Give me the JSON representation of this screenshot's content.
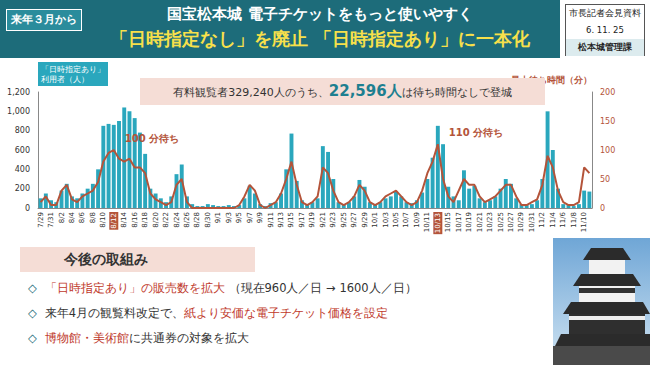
{
  "header": {
    "tag": "来年３月から",
    "title": "国宝松本城 電子チケットをもっと使いやすく",
    "subtitle": "「日時指定なし」を廃止 「日時指定あり」に一本化",
    "info": [
      "市長記者会見資料",
      "6. 11. 25",
      "松本城管理課"
    ]
  },
  "chart_data": {
    "type": "bar",
    "y_label": "「日時指定あり」\n利用者（人）",
    "y2_label": "最大待ち時間（分）",
    "categories": [
      "7/29",
      null,
      "7/31",
      null,
      "8/2",
      null,
      "8/4",
      null,
      "8/6",
      null,
      "8/8",
      null,
      "8/10",
      null,
      "8/12",
      null,
      "8/14",
      null,
      "8/16",
      null,
      "8/18",
      null,
      "8/20",
      null,
      "8/22",
      null,
      "8/24",
      null,
      "8/26",
      null,
      "8/28",
      null,
      "8/30",
      null,
      "9/1",
      null,
      "9/3",
      null,
      "9/5",
      null,
      "9/7",
      null,
      "9/9",
      null,
      "9/11",
      null,
      "9/13",
      null,
      "9/15",
      null,
      "9/17",
      null,
      "9/19",
      null,
      "9/21",
      null,
      "9/23",
      null,
      "9/25",
      null,
      "9/27",
      null,
      "9/29",
      null,
      "10/1",
      null,
      "10/3",
      null,
      "10/5",
      null,
      "10/7",
      null,
      "10/9",
      null,
      "10/11",
      null,
      "10/13",
      null,
      "10/15",
      null,
      "10/17",
      null,
      "10/19",
      null,
      "10/21",
      null,
      "10/23",
      null,
      "10/25",
      null,
      "10/27",
      null,
      "10/29",
      null,
      "10/31",
      null,
      "11/2",
      null,
      "11/4",
      null,
      "11/6",
      null,
      "11/8",
      null,
      "11/10",
      null
    ],
    "series": [
      {
        "type": "bar",
        "color": "#2aa7bd",
        "values": [
          100,
          150,
          80,
          60,
          180,
          250,
          120,
          100,
          150,
          200,
          250,
          400,
          850,
          870,
          860,
          900,
          1040,
          1000,
          930,
          780,
          560,
          200,
          150,
          100,
          60,
          120,
          350,
          450,
          120,
          40,
          20,
          20,
          40,
          30,
          20,
          20,
          30,
          20,
          30,
          100,
          230,
          150,
          40,
          20,
          50,
          60,
          150,
          400,
          770,
          280,
          80,
          40,
          60,
          100,
          640,
          580,
          300,
          60,
          40,
          60,
          120,
          290,
          220,
          60,
          40,
          60,
          100,
          120,
          170,
          120,
          60,
          50,
          80,
          160,
          300,
          520,
          850,
          660,
          220,
          120,
          80,
          390,
          200,
          230,
          100,
          60,
          80,
          120,
          200,
          300,
          250,
          100,
          40,
          30,
          40,
          80,
          300,
          1000,
          600,
          200,
          40,
          30,
          20,
          40,
          180,
          170
        ]
      },
      {
        "type": "line",
        "color": "#b4543a",
        "axis": "y2",
        "marker": "none",
        "line_style": "solid",
        "values": [
          10,
          20,
          5,
          5,
          30,
          40,
          15,
          10,
          20,
          25,
          30,
          45,
          80,
          95,
          100,
          85,
          80,
          85,
          70,
          70,
          60,
          25,
          15,
          10,
          5,
          10,
          40,
          50,
          10,
          0,
          0,
          0,
          0,
          0,
          0,
          0,
          0,
          0,
          5,
          20,
          40,
          30,
          5,
          0,
          5,
          10,
          25,
          50,
          80,
          40,
          10,
          5,
          10,
          20,
          70,
          60,
          30,
          10,
          5,
          10,
          20,
          40,
          30,
          10,
          5,
          10,
          20,
          25,
          30,
          20,
          10,
          5,
          10,
          30,
          60,
          80,
          110,
          50,
          20,
          10,
          30,
          50,
          40,
          40,
          20,
          10,
          15,
          20,
          30,
          40,
          40,
          20,
          5,
          5,
          10,
          15,
          40,
          90,
          70,
          30,
          10,
          5,
          5,
          10,
          70,
          60
        ]
      }
    ],
    "ylim": [
      0,
      1200
    ],
    "yticks": [
      0,
      200,
      400,
      600,
      800,
      1000,
      1200
    ],
    "y2lim": [
      0,
      200
    ],
    "y2ticks": [
      0,
      50,
      100,
      150,
      200
    ],
    "grid": false,
    "annotations": [
      {
        "text": "100 分待ち",
        "x": "8/12",
        "y": 100,
        "axis": "y2"
      },
      {
        "text": "110 分待ち",
        "x": "10/13",
        "y": 110,
        "axis": "y2"
      }
    ]
  },
  "summary": {
    "before": "有料観覧者329,240人のうち、",
    "highlight": "22,596人",
    "after": "は待ち時間なしで登城"
  },
  "plan": {
    "title": "今後の取組み",
    "bullet": "◇",
    "items": [
      {
        "parts": [
          {
            "text": "「日時指定あり」の販売数を拡大",
            "color": "#c0392b"
          },
          {
            "text": " （現在960人／日 → 1600人／日）"
          }
        ]
      },
      {
        "parts": [
          {
            "text": "来年4月の観覧料改定で、"
          },
          {
            "text": "紙より安価な電子チケット価格を設定",
            "color": "#c0392b"
          }
        ]
      },
      {
        "parts": [
          {
            "text": "博物館・美術館",
            "color": "#c0392b"
          },
          {
            "text": "に共通券の対象を拡大"
          }
        ]
      }
    ]
  }
}
